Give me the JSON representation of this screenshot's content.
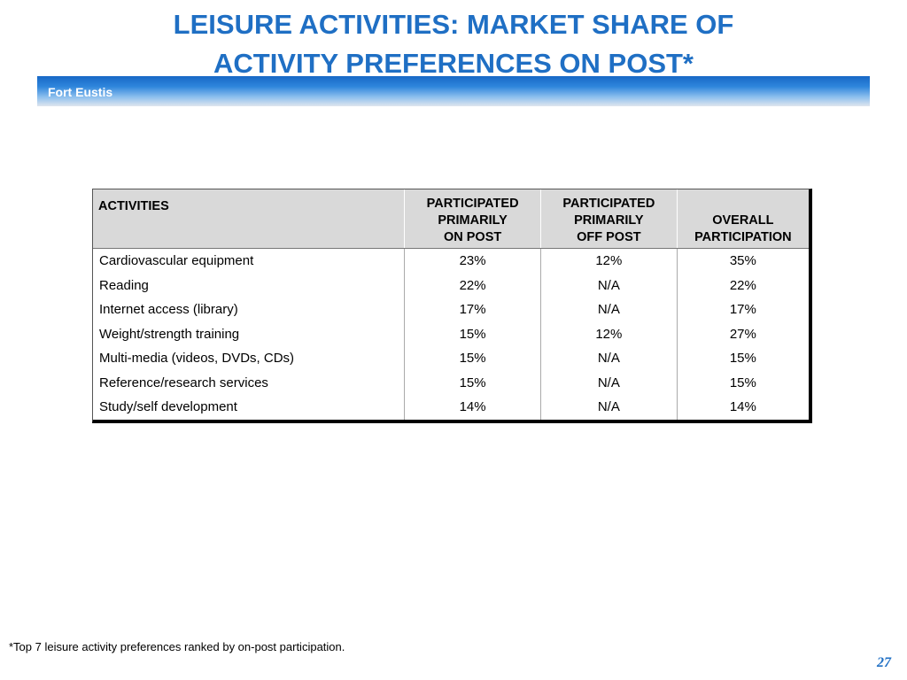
{
  "title_line1": "LEISURE ACTIVITIES: MARKET SHARE OF",
  "title_line2": "ACTIVITY PREFERENCES ON POST*",
  "banner_label": "Fort Eustis",
  "table": {
    "headers": {
      "activities": "ACTIVITIES",
      "on_post": [
        "PARTICIPATED",
        "PRIMARILY",
        "ON POST"
      ],
      "off_post": [
        "PARTICIPATED",
        "PRIMARILY",
        "OFF POST"
      ],
      "overall": [
        "OVERALL",
        "PARTICIPATION"
      ]
    },
    "rows": [
      {
        "activity": "Cardiovascular equipment",
        "on_post": "23%",
        "off_post": "12%",
        "overall": "35%"
      },
      {
        "activity": "Reading",
        "on_post": "22%",
        "off_post": "N/A",
        "overall": "22%"
      },
      {
        "activity": "Internet access (library)",
        "on_post": "17%",
        "off_post": "N/A",
        "overall": "17%"
      },
      {
        "activity": "Weight/strength training",
        "on_post": "15%",
        "off_post": "12%",
        "overall": "27%"
      },
      {
        "activity": "Multi-media (videos, DVDs, CDs)",
        "on_post": "15%",
        "off_post": "N/A",
        "overall": "15%"
      },
      {
        "activity": "Reference/research services",
        "on_post": "15%",
        "off_post": "N/A",
        "overall": "15%"
      },
      {
        "activity": "Study/self development",
        "on_post": "14%",
        "off_post": "N/A",
        "overall": "14%"
      }
    ]
  },
  "footnote": "*Top 7 leisure activity preferences ranked by on-post participation.",
  "page_number": "27",
  "colors": {
    "title": "#1f6fc4",
    "banner": "#2f86dc",
    "header_bg": "#d9d9d9"
  }
}
